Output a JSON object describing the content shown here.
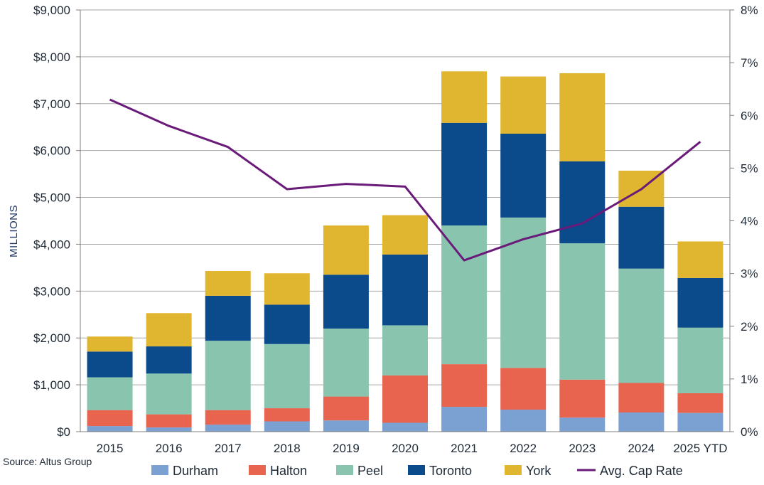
{
  "chart_data": {
    "type": "bar",
    "stacked": true,
    "categories": [
      "2015",
      "2016",
      "2017",
      "2018",
      "2019",
      "2020",
      "2021",
      "2022",
      "2023",
      "2024",
      "2025 YTD"
    ],
    "series": [
      {
        "name": "Durham",
        "color": "#7aa1d2",
        "values": [
          120,
          90,
          150,
          220,
          240,
          190,
          530,
          470,
          300,
          410,
          400
        ]
      },
      {
        "name": "Halton",
        "color": "#e8644f",
        "values": [
          340,
          280,
          310,
          280,
          510,
          1010,
          910,
          890,
          810,
          630,
          420
        ]
      },
      {
        "name": "Peel",
        "color": "#88c4ae",
        "values": [
          700,
          870,
          1480,
          1370,
          1450,
          1070,
          2960,
          3210,
          2910,
          2440,
          1400
        ]
      },
      {
        "name": "Toronto",
        "color": "#0b4a8b",
        "values": [
          550,
          580,
          960,
          840,
          1150,
          1510,
          2190,
          1790,
          1750,
          1320,
          1060
        ]
      },
      {
        "name": "York",
        "color": "#e0b52f",
        "values": [
          320,
          710,
          530,
          670,
          1050,
          840,
          1100,
          1220,
          1880,
          770,
          780
        ]
      }
    ],
    "line": {
      "name": "Avg. Cap Rate",
      "color": "#6a1b7a",
      "values": [
        6.3,
        5.8,
        5.4,
        4.6,
        4.7,
        4.65,
        3.25,
        3.65,
        3.95,
        4.6,
        5.5
      ]
    },
    "ylabel": "MILLIONS",
    "ylim": [
      0,
      9000
    ],
    "yticks": [
      "$0",
      "$1,000",
      "$2,000",
      "$3,000",
      "$4,000",
      "$5,000",
      "$6,000",
      "$7,000",
      "$8,000",
      "$9,000"
    ],
    "y2lim": [
      0,
      8
    ],
    "y2ticks": [
      "0%",
      "1%",
      "2%",
      "3%",
      "4%",
      "5%",
      "6%",
      "7%",
      "8%"
    ],
    "grid": true,
    "legend": "bottom",
    "source": "Source: Altus Group"
  }
}
